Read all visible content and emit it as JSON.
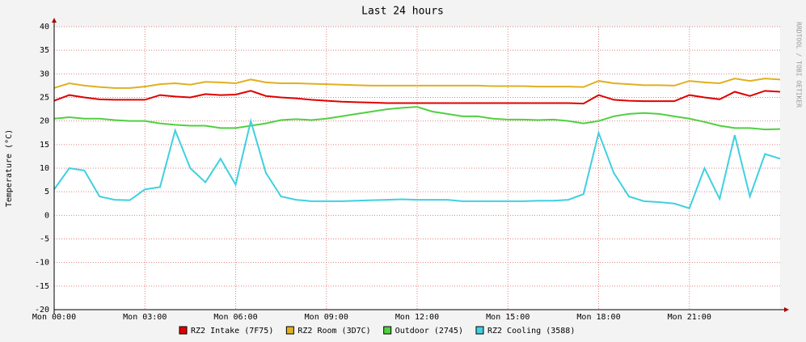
{
  "chart_data": {
    "type": "line",
    "title": "Last 24 hours",
    "y_label": "Temperature (°C)",
    "watermark": "RRDTOOL / TOBI OETIKER",
    "x": [
      0,
      0.5,
      1,
      1.5,
      2,
      2.5,
      3,
      3.5,
      4,
      4.5,
      5,
      5.5,
      6,
      6.5,
      7,
      7.5,
      8,
      8.5,
      9,
      9.5,
      10,
      10.5,
      11,
      11.5,
      12,
      12.5,
      13,
      13.5,
      14,
      14.5,
      15,
      15.5,
      16,
      16.5,
      17,
      17.5,
      18,
      18.5,
      19,
      19.5,
      20,
      20.5,
      21,
      21.5,
      22,
      22.5,
      23,
      23.5,
      24
    ],
    "xlim": [
      0,
      24
    ],
    "xticks": [
      {
        "value": 0,
        "label": "Mon 00:00"
      },
      {
        "value": 3,
        "label": "Mon 03:00"
      },
      {
        "value": 6,
        "label": "Mon 06:00"
      },
      {
        "value": 9,
        "label": "Mon 09:00"
      },
      {
        "value": 12,
        "label": "Mon 12:00"
      },
      {
        "value": 15,
        "label": "Mon 15:00"
      },
      {
        "value": 18,
        "label": "Mon 18:00"
      },
      {
        "value": 21,
        "label": "Mon 21:00"
      }
    ],
    "ylim": [
      -20,
      40
    ],
    "yticks": [
      -20,
      -15,
      -10,
      -5,
      0,
      5,
      10,
      15,
      20,
      25,
      30,
      35,
      40
    ],
    "grid": true,
    "series": [
      {
        "name": "RZ2 Intake (7F75)",
        "color": "#e00000",
        "values": [
          24.3,
          25.5,
          25,
          24.6,
          24.5,
          24.5,
          24.5,
          25.5,
          25.2,
          25,
          25.7,
          25.5,
          25.6,
          26.4,
          25.3,
          25,
          24.8,
          24.5,
          24.3,
          24.1,
          24,
          23.9,
          23.8,
          23.8,
          23.8,
          23.8,
          23.8,
          23.8,
          23.8,
          23.8,
          23.8,
          23.8,
          23.8,
          23.8,
          23.8,
          23.7,
          25.5,
          24.5,
          24.3,
          24.2,
          24.2,
          24.2,
          25.5,
          25,
          24.6,
          26.2,
          25.3,
          26.4,
          26.2
        ]
      },
      {
        "name": "RZ2 Room (3D7C)",
        "color": "#e0b020",
        "values": [
          27,
          28,
          27.5,
          27.2,
          27,
          27,
          27.3,
          27.8,
          28,
          27.7,
          28.3,
          28.2,
          28,
          28.8,
          28.2,
          28,
          28,
          27.9,
          27.8,
          27.7,
          27.6,
          27.5,
          27.5,
          27.5,
          27.5,
          27.5,
          27.5,
          27.5,
          27.5,
          27.4,
          27.4,
          27.4,
          27.3,
          27.3,
          27.3,
          27.2,
          28.5,
          28,
          27.8,
          27.6,
          27.6,
          27.5,
          28.5,
          28.2,
          28,
          29,
          28.5,
          29,
          28.8
        ]
      },
      {
        "name": "Outdoor (2745)",
        "color": "#50d040",
        "values": [
          20.5,
          20.8,
          20.5,
          20.5,
          20.2,
          20,
          20,
          19.5,
          19.2,
          19,
          19,
          18.5,
          18.5,
          19,
          19.5,
          20.2,
          20.4,
          20.2,
          20.5,
          21,
          21.5,
          22,
          22.5,
          22.8,
          23,
          22,
          21.5,
          21,
          21,
          20.5,
          20.3,
          20.3,
          20.2,
          20.3,
          20,
          19.5,
          20,
          21,
          21.5,
          21.7,
          21.5,
          21,
          20.5,
          19.8,
          19,
          18.5,
          18.5,
          18.2,
          18.3
        ]
      },
      {
        "name": "RZ2 Cooling (3588)",
        "color": "#40d0e0",
        "values": [
          5.5,
          10,
          9.5,
          4,
          3.3,
          3.2,
          5.5,
          6,
          18,
          10,
          7,
          12,
          6.5,
          20,
          9,
          4,
          3.3,
          3,
          3,
          3,
          3.1,
          3.2,
          3.3,
          3.4,
          3.3,
          3.3,
          3.3,
          3,
          3,
          3,
          3,
          3,
          3.1,
          3.1,
          3.3,
          4.5,
          17.5,
          9,
          4,
          3,
          2.8,
          2.5,
          1.5,
          10,
          3.5,
          17,
          4,
          13,
          12
        ]
      }
    ]
  }
}
